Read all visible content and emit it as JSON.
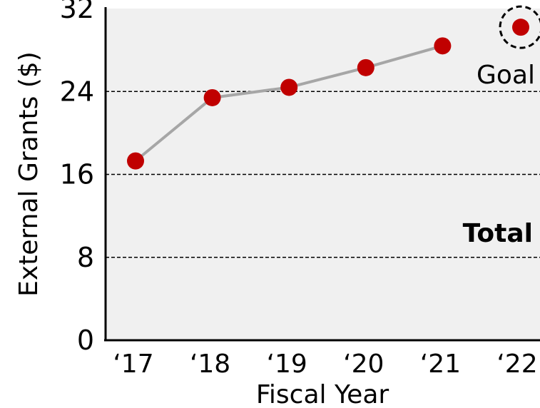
{
  "chart_data": {
    "type": "line",
    "xlabel": "Fiscal Year",
    "ylabel": "External Grants ($)",
    "categories": [
      "‘17",
      "‘18",
      "‘19",
      "‘20",
      "‘21",
      "‘22"
    ],
    "series": [
      {
        "values": [
          17.3,
          23.4,
          24.4,
          26.3,
          28.4,
          null
        ]
      }
    ],
    "goal": {
      "label": "Goal",
      "category": "‘22",
      "value": 30.2
    },
    "annotation": "Total",
    "ylim": [
      0,
      32
    ],
    "yticks": [
      0,
      8,
      16,
      24,
      32
    ],
    "gridlines": [
      8,
      16,
      24
    ],
    "grid": "dashed horizontal",
    "background": "#f0f0f0",
    "colors": {
      "marker": "#c00000",
      "line": "#a6a6a6"
    }
  }
}
